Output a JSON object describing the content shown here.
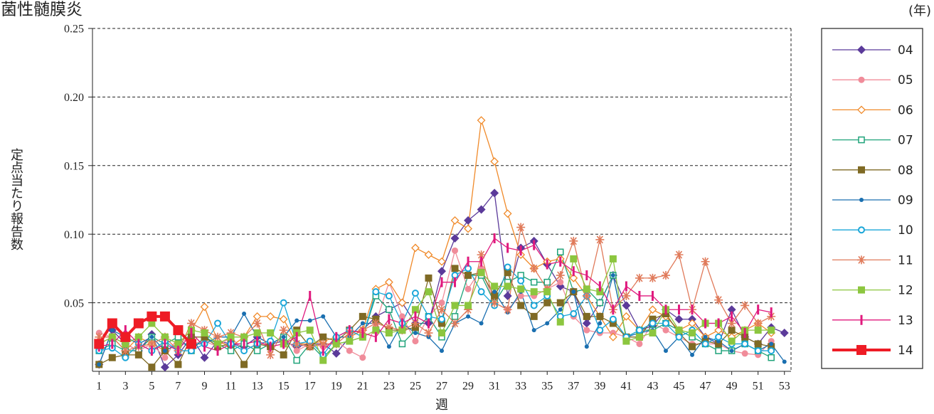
{
  "chart_data": {
    "type": "line",
    "title": "細菌性髄膜炎",
    "y_label": "定点当たり報告数",
    "x_label": "週",
    "legend_title": "(年)",
    "legend_position": "right",
    "grid": true,
    "xlim": [
      0.5,
      53.5
    ],
    "xticks": [
      1,
      3,
      5,
      7,
      9,
      11,
      13,
      15,
      17,
      19,
      21,
      23,
      25,
      27,
      29,
      31,
      33,
      35,
      37,
      39,
      41,
      43,
      45,
      47,
      49,
      51,
      53
    ],
    "ylim": [
      0,
      0.25
    ],
    "yticks": [
      0.05,
      {
        "value": 0.1,
        "label": "0.10"
      },
      0.15,
      {
        "value": 0.2,
        "label": "0.20"
      },
      0.25
    ],
    "x": [
      1,
      2,
      3,
      4,
      5,
      6,
      7,
      8,
      9,
      10,
      11,
      12,
      13,
      14,
      15,
      16,
      17,
      18,
      19,
      20,
      21,
      22,
      23,
      24,
      25,
      26,
      27,
      28,
      29,
      30,
      31,
      32,
      33,
      34,
      35,
      36,
      37,
      38,
      39,
      40,
      41,
      42,
      43,
      44,
      45,
      46,
      47,
      48,
      49,
      50,
      51,
      52,
      53
    ],
    "series": [
      {
        "name": "04",
        "color": "#5b3a9a",
        "marker": "diamond",
        "values": [
          0.005,
          0.03,
          0.02,
          0.015,
          0.027,
          0.003,
          0.012,
          0.025,
          0.01,
          0.022,
          0.02,
          0.018,
          0.025,
          0.02,
          0.022,
          0.018,
          0.02,
          0.02,
          0.013,
          0.025,
          0.03,
          0.04,
          0.045,
          0.05,
          0.035,
          0.035,
          0.073,
          0.097,
          0.11,
          0.118,
          0.13,
          0.055,
          0.09,
          0.095,
          0.078,
          0.062,
          0.058,
          0.035,
          0.05,
          0.07,
          0.048,
          0.03,
          0.033,
          0.045,
          0.038,
          0.038,
          0.025,
          0.02,
          0.045,
          0.025,
          0.02,
          0.032,
          0.028
        ]
      },
      {
        "name": "05",
        "color": "#f08c9a",
        "marker": "circle",
        "values": [
          0.028,
          0.025,
          0.02,
          0.015,
          0.02,
          0.01,
          0.025,
          0.02,
          0.022,
          0.018,
          0.025,
          0.015,
          0.02,
          0.02,
          0.025,
          0.015,
          0.02,
          0.018,
          0.022,
          0.015,
          0.01,
          0.035,
          0.065,
          0.04,
          0.022,
          0.04,
          0.05,
          0.088,
          0.06,
          0.075,
          0.05,
          0.045,
          0.055,
          0.055,
          0.06,
          0.065,
          0.04,
          0.03,
          0.028,
          0.028,
          0.025,
          0.02,
          0.035,
          0.03,
          0.025,
          0.02,
          0.02,
          0.02,
          0.015,
          0.013,
          0.012,
          0.022,
          null
        ]
      },
      {
        "name": "06",
        "color": "#f08a2a",
        "marker": "diamond-open",
        "values": [
          0.02,
          0.025,
          0.015,
          0.025,
          0.02,
          0.015,
          0.02,
          0.03,
          0.047,
          0.022,
          0.018,
          0.025,
          0.04,
          0.04,
          0.038,
          0.02,
          0.02,
          0.022,
          0.025,
          0.025,
          0.03,
          0.06,
          0.065,
          0.05,
          0.09,
          0.085,
          0.08,
          0.11,
          0.104,
          0.183,
          0.153,
          0.115,
          0.085,
          0.075,
          0.08,
          0.082,
          0.068,
          0.055,
          0.04,
          0.025,
          0.04,
          0.03,
          0.045,
          0.04,
          0.03,
          0.035,
          0.025,
          0.03,
          0.025,
          0.03,
          0.035,
          0.028,
          null
        ]
      },
      {
        "name": "07",
        "color": "#1fa37a",
        "marker": "square-open",
        "values": [
          0.015,
          0.02,
          0.015,
          0.015,
          0.025,
          0.02,
          0.025,
          0.015,
          0.025,
          0.02,
          0.015,
          0.02,
          0.015,
          0.02,
          0.025,
          0.008,
          0.02,
          0.01,
          0.02,
          0.022,
          0.025,
          0.055,
          0.045,
          0.02,
          0.03,
          0.04,
          0.025,
          0.04,
          0.07,
          0.07,
          0.05,
          0.065,
          0.07,
          0.065,
          0.065,
          0.087,
          0.058,
          0.06,
          0.05,
          0.07,
          0.025,
          0.03,
          0.03,
          0.035,
          0.03,
          0.025,
          0.02,
          0.015,
          0.015,
          0.02,
          0.015,
          0.01,
          null
        ]
      },
      {
        "name": "08",
        "color": "#7f6a24",
        "marker": "square",
        "values": [
          0.005,
          0.01,
          0.012,
          0.012,
          0.003,
          0.015,
          0.005,
          0.025,
          0.025,
          0.018,
          0.02,
          0.005,
          0.02,
          0.018,
          0.012,
          0.03,
          0.018,
          0.025,
          0.022,
          0.03,
          0.04,
          0.038,
          0.03,
          0.03,
          0.032,
          0.068,
          0.035,
          0.075,
          0.07,
          0.072,
          0.055,
          0.072,
          0.048,
          0.04,
          0.05,
          0.05,
          0.058,
          0.04,
          0.04,
          0.035,
          0.025,
          0.025,
          0.038,
          0.042,
          0.028,
          0.018,
          0.022,
          0.02,
          0.03,
          0.025,
          0.02,
          0.018,
          null
        ]
      },
      {
        "name": "09",
        "color": "#1a6fb0",
        "marker": "dot",
        "values": [
          0.005,
          0.03,
          0.025,
          0.02,
          0.025,
          0.015,
          0.02,
          0.02,
          0.02,
          0.025,
          0.025,
          0.042,
          0.025,
          0.02,
          0.025,
          0.037,
          0.037,
          0.04,
          0.025,
          0.025,
          0.035,
          0.035,
          0.018,
          0.035,
          0.028,
          0.025,
          0.015,
          0.035,
          0.04,
          0.035,
          0.058,
          0.043,
          0.058,
          0.03,
          0.035,
          0.045,
          0.058,
          0.018,
          0.035,
          0.07,
          0.025,
          0.028,
          0.03,
          0.015,
          0.025,
          0.012,
          0.025,
          0.022,
          0.015,
          0.02,
          0.015,
          0.02,
          0.007
        ]
      },
      {
        "name": "10",
        "color": "#1aa6d8",
        "marker": "circle-open",
        "values": [
          0.015,
          0.017,
          0.01,
          0.02,
          0.015,
          0.022,
          0.015,
          0.015,
          0.02,
          0.035,
          0.02,
          0.015,
          0.02,
          0.022,
          0.05,
          0.02,
          0.022,
          0.012,
          0.025,
          0.03,
          0.025,
          0.058,
          0.055,
          0.035,
          0.057,
          0.04,
          0.038,
          0.07,
          0.075,
          0.058,
          0.048,
          0.076,
          0.066,
          0.048,
          0.055,
          0.04,
          0.042,
          0.055,
          0.03,
          0.038,
          0.025,
          0.03,
          0.035,
          0.035,
          0.025,
          0.03,
          0.02,
          0.025,
          0.02,
          0.02,
          0.015,
          0.015,
          null
        ]
      },
      {
        "name": "11",
        "color": "#e07a5a",
        "marker": "asterisk",
        "values": [
          0.025,
          0.025,
          0.015,
          0.018,
          0.02,
          0.025,
          0.015,
          0.035,
          0.03,
          0.025,
          0.028,
          0.025,
          0.035,
          0.012,
          0.03,
          0.02,
          0.018,
          0.02,
          0.02,
          0.028,
          0.03,
          0.035,
          0.032,
          0.03,
          0.035,
          0.028,
          0.045,
          0.035,
          0.045,
          0.085,
          0.05,
          0.045,
          0.105,
          0.075,
          0.06,
          0.07,
          0.095,
          0.055,
          0.096,
          0.045,
          0.055,
          0.068,
          0.068,
          0.07,
          0.085,
          0.045,
          0.08,
          0.052,
          0.035,
          0.048,
          0.035,
          0.04,
          null
        ]
      },
      {
        "name": "12",
        "color": "#8cc63f",
        "marker": "square",
        "values": [
          0.02,
          0.025,
          0.02,
          0.025,
          0.035,
          0.025,
          0.02,
          0.03,
          0.028,
          0.02,
          0.025,
          0.025,
          0.028,
          0.028,
          0.02,
          0.028,
          0.03,
          0.008,
          0.02,
          0.022,
          0.025,
          0.03,
          0.028,
          0.03,
          0.045,
          0.058,
          0.028,
          0.048,
          0.048,
          0.072,
          0.062,
          0.062,
          0.06,
          0.058,
          0.058,
          0.036,
          0.082,
          0.06,
          0.058,
          0.082,
          0.022,
          0.025,
          0.028,
          0.045,
          0.03,
          0.028,
          0.035,
          0.035,
          0.022,
          0.03,
          0.03,
          0.03,
          null
        ]
      },
      {
        "name": "13",
        "color": "#e0197d",
        "marker": "bar",
        "values": [
          0.018,
          0.02,
          0.03,
          0.02,
          0.015,
          0.02,
          0.015,
          0.028,
          0.018,
          0.015,
          0.02,
          0.02,
          0.022,
          0.018,
          0.02,
          0.025,
          0.055,
          0.015,
          0.025,
          0.03,
          0.028,
          0.025,
          0.038,
          0.035,
          0.04,
          0.035,
          0.065,
          0.065,
          0.08,
          0.08,
          0.097,
          0.09,
          0.088,
          0.092,
          0.078,
          0.08,
          0.073,
          0.07,
          0.062,
          0.045,
          0.062,
          0.055,
          0.055,
          0.045,
          0.045,
          0.045,
          0.035,
          0.035,
          0.04,
          0.028,
          0.045,
          0.043,
          null
        ]
      },
      {
        "name": "14",
        "color": "#ee1c25",
        "marker": "square-big",
        "values": [
          0.02,
          0.035,
          0.025,
          0.035,
          0.04,
          0.04,
          0.03,
          0.02,
          null,
          null,
          null,
          null,
          null,
          null,
          null,
          null,
          null,
          null,
          null,
          null,
          null,
          null,
          null,
          null,
          null,
          null,
          null,
          null,
          null,
          null,
          null,
          null,
          null,
          null,
          null,
          null,
          null,
          null,
          null,
          null,
          null,
          null,
          null,
          null,
          null,
          null,
          null,
          null,
          null,
          null,
          null,
          null,
          null
        ]
      }
    ]
  }
}
